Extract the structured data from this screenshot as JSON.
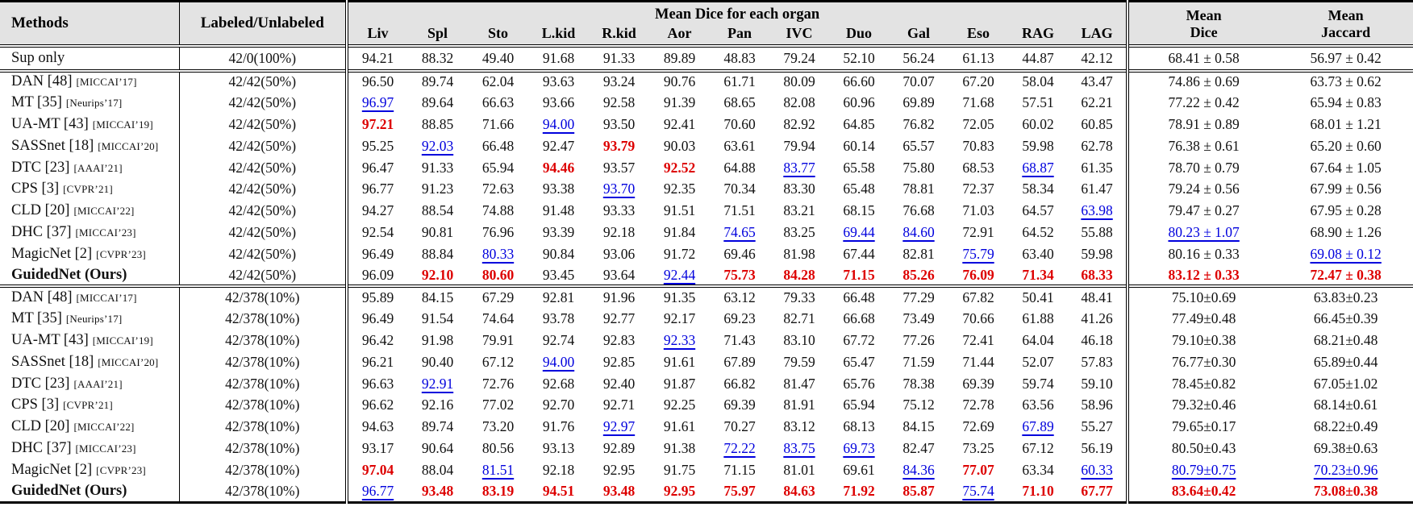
{
  "colors": {
    "best": "#dd0000",
    "second": "#0000dd",
    "header_bg": "#e3e3e3"
  },
  "header": {
    "methods": "Methods",
    "labeled_unlabeled": "Labeled/Unlabeled",
    "organ_group": "Mean Dice for each organ",
    "organs": [
      "Liv",
      "Spl",
      "Sto",
      "L.kid",
      "R.kid",
      "Aor",
      "Pan",
      "IVC",
      "Duo",
      "Gal",
      "Eso",
      "RAG",
      "LAG"
    ],
    "mean_dice": {
      "line1": "Mean",
      "line2": "Dice"
    },
    "mean_jaccard": {
      "line1": "Mean",
      "line2": "Jaccard"
    }
  },
  "style_legend": {
    "n": "normal",
    "b": "best-red-bold",
    "s": "second-blue-underline"
  },
  "sections": [
    {
      "name": "supervised-only",
      "rows": [
        {
          "method": "Sup only",
          "venue": "",
          "bold": false,
          "ratio": "42/0(100%)",
          "values": [
            "94.21",
            "88.32",
            "49.40",
            "91.68",
            "91.33",
            "89.89",
            "48.83",
            "79.24",
            "52.10",
            "56.24",
            "61.13",
            "44.87",
            "42.12",
            "68.41 ± 0.58",
            "56.97 ± 0.42"
          ],
          "styles": "nnnnnnnnnnnnnnn"
        }
      ]
    },
    {
      "name": "labeled-50-percent",
      "rows": [
        {
          "method": "DAN [48]",
          "venue": "[MICCAI’17]",
          "bold": false,
          "ratio": "42/42(50%)",
          "values": [
            "96.50",
            "89.74",
            "62.04",
            "93.63",
            "93.24",
            "90.76",
            "61.71",
            "80.09",
            "66.60",
            "70.07",
            "67.20",
            "58.04",
            "43.47",
            "74.86 ± 0.69",
            "63.73 ± 0.62"
          ],
          "styles": "nnnnnnnnnnnnnnn"
        },
        {
          "method": "MT [35]",
          "venue": "[Neurips’17]",
          "bold": false,
          "ratio": "42/42(50%)",
          "values": [
            "96.97",
            "89.64",
            "66.63",
            "93.66",
            "92.58",
            "91.39",
            "68.65",
            "82.08",
            "60.96",
            "69.89",
            "71.68",
            "57.51",
            "62.21",
            "77.22 ± 0.42",
            "65.94 ± 0.83"
          ],
          "styles": "snnnnnnnnnnnnnn"
        },
        {
          "method": "UA-MT [43]",
          "venue": "[MICCAI’19]",
          "bold": false,
          "ratio": "42/42(50%)",
          "values": [
            "97.21",
            "88.85",
            "71.66",
            "94.00",
            "93.50",
            "92.41",
            "70.60",
            "82.92",
            "64.85",
            "76.82",
            "72.05",
            "60.02",
            "60.85",
            "78.91 ± 0.89",
            "68.01 ± 1.21"
          ],
          "styles": "bnnsnnnnnnnnnnn"
        },
        {
          "method": "SASSnet [18]",
          "venue": "[MICCAI’20]",
          "bold": false,
          "ratio": "42/42(50%)",
          "values": [
            "95.25",
            "92.03",
            "66.48",
            "92.47",
            "93.79",
            "90.03",
            "63.61",
            "79.94",
            "60.14",
            "65.57",
            "70.83",
            "59.98",
            "62.78",
            "76.38 ± 0.61",
            "65.20 ± 0.60"
          ],
          "styles": "nsnnbnnnnnnnnnn"
        },
        {
          "method": "DTC [23]",
          "venue": "[AAAI’21]",
          "bold": false,
          "ratio": "42/42(50%)",
          "values": [
            "96.47",
            "91.33",
            "65.94",
            "94.46",
            "93.57",
            "92.52",
            "64.88",
            "83.77",
            "65.58",
            "75.80",
            "68.53",
            "68.87",
            "61.35",
            "78.70 ± 0.79",
            "67.64 ± 1.05"
          ],
          "styles": "nnnbnbnsnnnsnnn"
        },
        {
          "method": "CPS [3]",
          "venue": "[CVPR’21]",
          "bold": false,
          "ratio": "42/42(50%)",
          "values": [
            "96.77",
            "91.23",
            "72.63",
            "93.38",
            "93.70",
            "92.35",
            "70.34",
            "83.30",
            "65.48",
            "78.81",
            "72.37",
            "58.34",
            "61.47",
            "79.24 ± 0.56",
            "67.99 ± 0.56"
          ],
          "styles": "nnnnsnnnnnnnnnn"
        },
        {
          "method": "CLD [20]",
          "venue": "[MICCAI’22]",
          "bold": false,
          "ratio": "42/42(50%)",
          "values": [
            "94.27",
            "88.54",
            "74.88",
            "91.48",
            "93.33",
            "91.51",
            "71.51",
            "83.21",
            "68.15",
            "76.68",
            "71.03",
            "64.57",
            "63.98",
            "79.47 ± 0.27",
            "67.95 ± 0.28"
          ],
          "styles": "nnnnnnnnnnnnsnn"
        },
        {
          "method": "DHC [37]",
          "venue": "[MICCAI’23]",
          "bold": false,
          "ratio": "42/42(50%)",
          "values": [
            "92.54",
            "90.81",
            "76.96",
            "93.39",
            "92.18",
            "91.84",
            "74.65",
            "83.25",
            "69.44",
            "84.60",
            "72.91",
            "64.52",
            "55.88",
            "80.23 ± 1.07",
            "68.90 ± 1.26"
          ],
          "styles": "nnnnnnsnssnnnsn"
        },
        {
          "method": "MagicNet [2]",
          "venue": "[CVPR’23]",
          "bold": false,
          "ratio": "42/42(50%)",
          "values": [
            "96.49",
            "88.84",
            "80.33",
            "90.84",
            "93.06",
            "91.72",
            "69.46",
            "81.98",
            "67.44",
            "82.81",
            "75.79",
            "63.40",
            "59.98",
            "80.16 ± 0.33",
            "69.08 ± 0.12"
          ],
          "styles": "nnsnnnnnnnsnnns"
        },
        {
          "method": "GuidedNet (Ours)",
          "venue": "",
          "bold": true,
          "ratio": "42/42(50%)",
          "values": [
            "96.09",
            "92.10",
            "80.60",
            "93.45",
            "93.64",
            "92.44",
            "75.73",
            "84.28",
            "71.15",
            "85.26",
            "76.09",
            "71.34",
            "68.33",
            "83.12 ± 0.33",
            "72.47 ± 0.38"
          ],
          "styles": "nbbnnsbbbbbbbbb"
        }
      ]
    },
    {
      "name": "labeled-10-percent",
      "rows": [
        {
          "method": "DAN [48]",
          "venue": "[MICCAI’17]",
          "bold": false,
          "ratio": "42/378(10%)",
          "values": [
            "95.89",
            "84.15",
            "67.29",
            "92.81",
            "91.96",
            "91.35",
            "63.12",
            "79.33",
            "66.48",
            "77.29",
            "67.82",
            "50.41",
            "48.41",
            "75.10±0.69",
            "63.83±0.23"
          ],
          "styles": "nnnnnnnnnnnnnnn"
        },
        {
          "method": "MT [35]",
          "venue": "[Neurips’17]",
          "bold": false,
          "ratio": "42/378(10%)",
          "values": [
            "96.49",
            "91.54",
            "74.64",
            "93.78",
            "92.77",
            "92.17",
            "69.23",
            "82.71",
            "66.68",
            "73.49",
            "70.66",
            "61.88",
            "41.26",
            "77.49±0.48",
            "66.45±0.39"
          ],
          "styles": "nnnnnnnnnnnnnnn"
        },
        {
          "method": "UA-MT [43]",
          "venue": "[MICCAI’19]",
          "bold": false,
          "ratio": "42/378(10%)",
          "values": [
            "96.42",
            "91.98",
            "79.91",
            "92.74",
            "92.83",
            "92.33",
            "71.43",
            "83.10",
            "67.72",
            "77.26",
            "72.41",
            "64.04",
            "46.18",
            "79.10±0.38",
            "68.21±0.48"
          ],
          "styles": "nnnnnsnnnnnnnnn"
        },
        {
          "method": "SASSnet [18]",
          "venue": "[MICCAI’20]",
          "bold": false,
          "ratio": "42/378(10%)",
          "values": [
            "96.21",
            "90.40",
            "67.12",
            "94.00",
            "92.85",
            "91.61",
            "67.89",
            "79.59",
            "65.47",
            "71.59",
            "71.44",
            "52.07",
            "57.83",
            "76.77±0.30",
            "65.89±0.44"
          ],
          "styles": "nnnsnnnnnnnnnnn"
        },
        {
          "method": "DTC [23]",
          "venue": "[AAAI’21]",
          "bold": false,
          "ratio": "42/378(10%)",
          "values": [
            "96.63",
            "92.91",
            "72.76",
            "92.68",
            "92.40",
            "91.87",
            "66.82",
            "81.47",
            "65.76",
            "78.38",
            "69.39",
            "59.74",
            "59.10",
            "78.45±0.82",
            "67.05±1.02"
          ],
          "styles": "nsnnnnnnnnnnnnn"
        },
        {
          "method": "CPS [3]",
          "venue": "[CVPR’21]",
          "bold": false,
          "ratio": "42/378(10%)",
          "values": [
            "96.62",
            "92.16",
            "77.02",
            "92.70",
            "92.71",
            "92.25",
            "69.39",
            "81.91",
            "65.94",
            "75.12",
            "72.78",
            "63.56",
            "58.96",
            "79.32±0.46",
            "68.14±0.61"
          ],
          "styles": "nnnnnnnnnnnnnnn"
        },
        {
          "method": "CLD [20]",
          "venue": "[MICCAI’22]",
          "bold": false,
          "ratio": "42/378(10%)",
          "values": [
            "94.63",
            "89.74",
            "73.20",
            "91.76",
            "92.97",
            "91.61",
            "70.27",
            "83.12",
            "68.13",
            "84.15",
            "72.69",
            "67.89",
            "55.27",
            "79.65±0.17",
            "68.22±0.49"
          ],
          "styles": "nnnnsnnnnnnsnnn"
        },
        {
          "method": "DHC [37]",
          "venue": "[MICCAI’23]",
          "bold": false,
          "ratio": "42/378(10%)",
          "values": [
            "93.17",
            "90.64",
            "80.56",
            "93.13",
            "92.89",
            "91.38",
            "72.22",
            "83.75",
            "69.73",
            "82.47",
            "73.25",
            "67.12",
            "56.19",
            "80.50±0.43",
            "69.38±0.63"
          ],
          "styles": "nnnnnnsssnnnnnn"
        },
        {
          "method": "MagicNet [2]",
          "venue": "[CVPR’23]",
          "bold": false,
          "ratio": "42/378(10%)",
          "values": [
            "97.04",
            "88.04",
            "81.51",
            "92.18",
            "92.95",
            "91.75",
            "71.15",
            "81.01",
            "69.61",
            "84.36",
            "77.07",
            "63.34",
            "60.33",
            "80.79±0.75",
            "70.23±0.96"
          ],
          "styles": "bnsnnnnnnsbnsss"
        },
        {
          "method": "GuidedNet (Ours)",
          "venue": "",
          "bold": true,
          "ratio": "42/378(10%)",
          "values": [
            "96.77",
            "93.48",
            "83.19",
            "94.51",
            "93.48",
            "92.95",
            "75.97",
            "84.63",
            "71.92",
            "85.87",
            "75.74",
            "71.10",
            "67.77",
            "83.64±0.42",
            "73.08±0.38"
          ],
          "styles": "sbbbbbbbbbsbbbb"
        }
      ]
    }
  ]
}
